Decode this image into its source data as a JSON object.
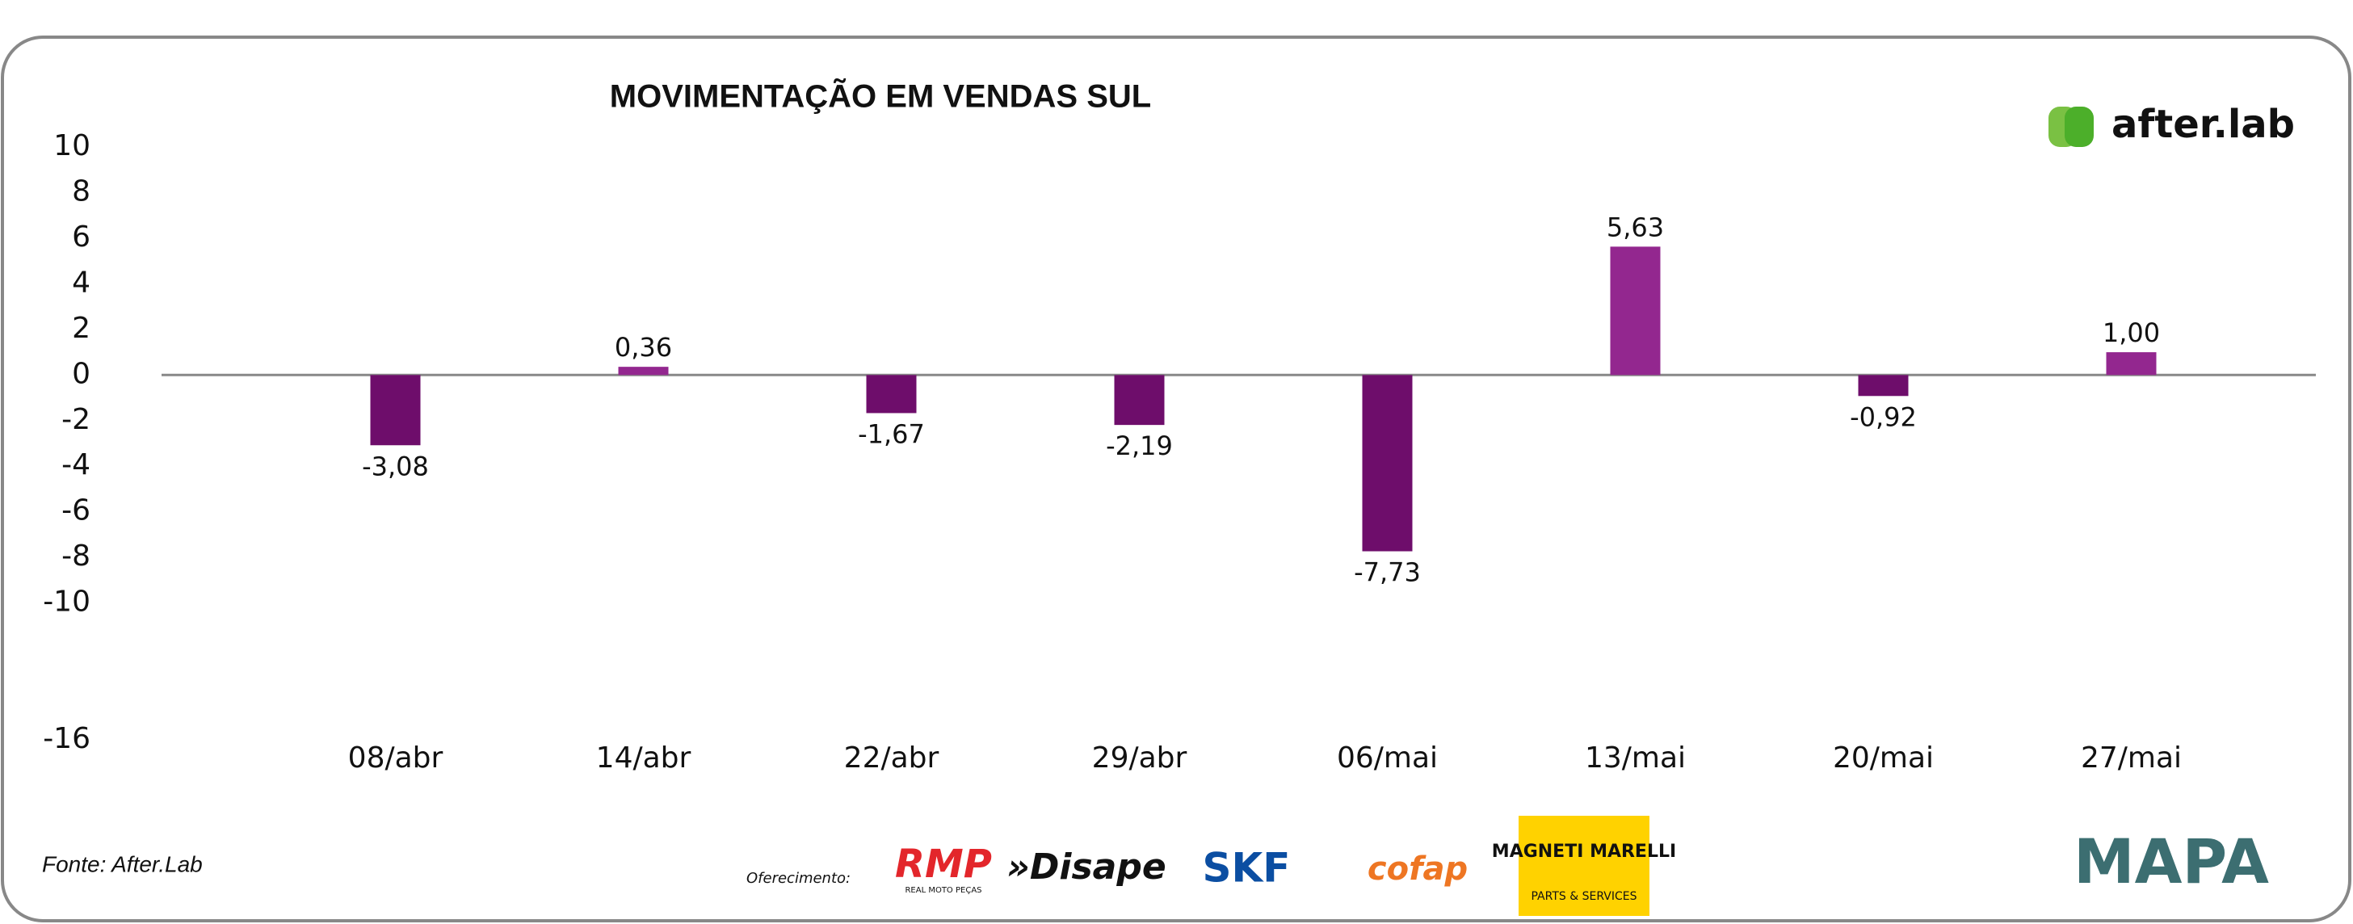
{
  "chart_data": {
    "type": "bar",
    "title": "MOVIMENTAÇÃO EM VENDAS SUL",
    "categories": [
      "08/abr",
      "14/abr",
      "22/abr",
      "29/abr",
      "06/mai",
      "13/mai",
      "20/mai",
      "27/mai"
    ],
    "values": [
      -3.08,
      0.36,
      -1.67,
      -2.19,
      -7.73,
      5.63,
      -0.92,
      1.0
    ],
    "value_labels": [
      "-3,08",
      "0,36",
      "-1,67",
      "-2,19",
      "-7,73",
      "5,63",
      "-0,92",
      "1,00"
    ],
    "color": "#93278f",
    "negative_color": "#6e0d6b",
    "ylim": [
      -16,
      10
    ],
    "yticks": [
      10,
      8,
      6,
      4,
      2,
      0,
      -2,
      -4,
      -6,
      -8,
      -10,
      -16
    ]
  },
  "footer": {
    "source": "Fonte: After.Lab",
    "sponsor_label": "Oferecimento:"
  },
  "logos": {
    "brand": "after.lab",
    "rmp": "RMP",
    "rmp_sub": "REAL MOTO PEÇAS",
    "disape": "»Disape",
    "skf": "SKF",
    "cofap": "cofap",
    "magneti": "MAGNETI MARELLI",
    "magneti_sub": "PARTS & SERVICES",
    "mapa": "MAPA"
  }
}
